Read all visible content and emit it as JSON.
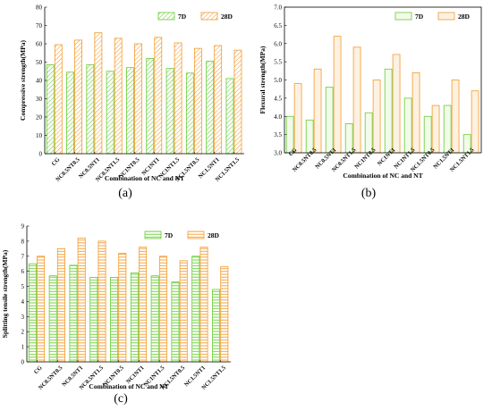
{
  "chart_data": [
    {
      "panel_label": "(a)",
      "type": "bar",
      "ylabel": "Compressive strength(MPa)",
      "xlabel": "Combination of NC and NT",
      "ylim": [
        0,
        80
      ],
      "yticks": [
        0,
        10,
        20,
        30,
        40,
        50,
        60,
        70,
        80
      ],
      "categories": [
        "CG",
        "NC0.5NT0.5",
        "NC0.5NT1",
        "NC0.5NT1.5",
        "NC1NT0.5",
        "NC1NT1",
        "NC1NT1.5",
        "NC1.5NT0.5",
        "NC1.5NT1",
        "NC1.5NT1.5"
      ],
      "series": [
        {
          "name": "7D",
          "color": "#66cc33",
          "values": [
            48.5,
            44.5,
            48.5,
            45.0,
            47.0,
            52.0,
            46.5,
            44.0,
            50.5,
            41.0
          ]
        },
        {
          "name": "28D",
          "color": "#f39a2b",
          "values": [
            59.5,
            62.0,
            66.0,
            63.0,
            60.0,
            63.5,
            60.5,
            57.5,
            59.0,
            56.5
          ]
        }
      ],
      "legend": "top-right",
      "grid": false
    },
    {
      "panel_label": "(b)",
      "type": "bar",
      "ylabel": "Flexural strength(MPa)",
      "xlabel": "Combination of NC and NT",
      "ylim": [
        3.0,
        7.0
      ],
      "yticks": [
        "3.0",
        "3.5",
        "4.0",
        "4.5",
        "5.0",
        "5.5",
        "6.0",
        "6.5",
        "7.0"
      ],
      "categories": [
        "CG",
        "NC0.5NT0.5",
        "NC0.5NT1",
        "NC0.5NT1.5",
        "NC1NT0.5",
        "NC1NT1",
        "NC1NT1.5",
        "NC1.5NT0.5",
        "NC1.5NT1",
        "NC1.5NT1.5"
      ],
      "series": [
        {
          "name": "7D",
          "color": "#66cc33",
          "values": [
            4.0,
            3.9,
            4.8,
            3.8,
            4.1,
            5.3,
            4.5,
            4.0,
            4.3,
            3.5
          ]
        },
        {
          "name": "28D",
          "color": "#f39a2b",
          "values": [
            4.9,
            5.3,
            6.2,
            5.9,
            5.0,
            5.7,
            5.2,
            4.3,
            5.0,
            4.7
          ]
        }
      ],
      "legend": "top-right",
      "grid": false
    },
    {
      "panel_label": "(c)",
      "type": "bar",
      "ylabel": "Splitting tensile strength(MPa)",
      "xlabel": "Combination of NC and NT",
      "ylim": [
        0,
        9
      ],
      "yticks": [
        0,
        1,
        2,
        3,
        4,
        5,
        6,
        7,
        8,
        9
      ],
      "categories": [
        "CG",
        "NC0.5NT0.5",
        "NC0.5NT1",
        "NC0.5NT1.5",
        "NC1NT0.5",
        "NC1NT1",
        "NC1NT1.5",
        "NC1.5NT0.5",
        "NC1.5NT1",
        "NC1.5NT1.5"
      ],
      "series": [
        {
          "name": "7D",
          "color": "#66cc33",
          "values": [
            6.5,
            5.7,
            6.4,
            5.6,
            5.6,
            5.9,
            5.7,
            5.3,
            7.0,
            4.8
          ]
        },
        {
          "name": "28D",
          "color": "#f39a2b",
          "values": [
            7.0,
            7.5,
            8.2,
            8.0,
            7.2,
            7.6,
            7.0,
            6.7,
            7.6,
            6.3
          ]
        }
      ],
      "legend": "top-right",
      "grid": false
    }
  ]
}
